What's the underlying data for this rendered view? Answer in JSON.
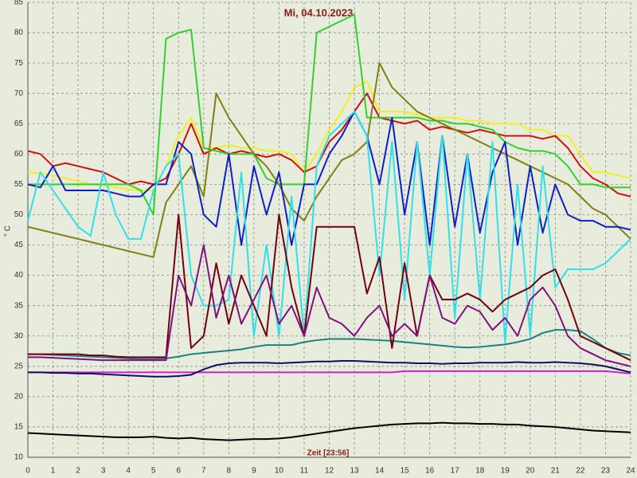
{
  "chart_data": {
    "type": "line",
    "title": "Mi, 04.10.2023",
    "x_label": "Zeit [23:56]",
    "y_label": "° C",
    "x": [
      0,
      0.5,
      1,
      1.5,
      2,
      2.5,
      3,
      3.5,
      4,
      4.5,
      5,
      5.5,
      6,
      6.5,
      7,
      7.5,
      8,
      8.5,
      9,
      9.5,
      10,
      10.5,
      11,
      11.5,
      12,
      12.5,
      13,
      13.5,
      14,
      14.5,
      15,
      15.5,
      16,
      16.5,
      17,
      17.5,
      18,
      18.5,
      19,
      19.5,
      20,
      20.5,
      21,
      21.5,
      22,
      22.5,
      23,
      23.5,
      24
    ],
    "xlim": [
      0,
      24
    ],
    "xticks": [
      0,
      1,
      2,
      3,
      4,
      5,
      6,
      7,
      8,
      9,
      10,
      11,
      12,
      13,
      14,
      15,
      16,
      17,
      18,
      19,
      20,
      21,
      22,
      23,
      24
    ],
    "ylim": [
      10,
      85
    ],
    "yticks": [
      10,
      15,
      20,
      25,
      30,
      35,
      40,
      45,
      50,
      55,
      60,
      65,
      70,
      75,
      80,
      85
    ],
    "grid": true,
    "series": [
      {
        "color": "#000000",
        "values": [
          14,
          13.9,
          13.8,
          13.7,
          13.6,
          13.5,
          13.4,
          13.3,
          13.3,
          13.3,
          13.4,
          13.2,
          13.1,
          13.2,
          13,
          12.9,
          12.8,
          12.9,
          13,
          13,
          13.1,
          13.3,
          13.6,
          13.9,
          14.2,
          14.5,
          14.8,
          15,
          15.2,
          15.4,
          15.5,
          15.6,
          15.6,
          15.7,
          15.6,
          15.6,
          15.5,
          15.5,
          15.4,
          15.4,
          15.2,
          15.1,
          15,
          14.8,
          14.6,
          14.4,
          14.3,
          14.2,
          14.1
        ]
      },
      {
        "color": "#d020d0",
        "values": [
          24,
          24,
          24,
          24,
          24,
          24,
          24,
          24,
          24,
          24,
          24,
          24,
          24,
          24,
          24,
          24,
          24,
          24,
          24,
          24,
          24,
          24,
          24,
          24,
          24,
          24,
          24,
          24,
          24,
          24,
          24.2,
          24.2,
          24.2,
          24.2,
          24.2,
          24.2,
          24.2,
          24.2,
          24.2,
          24.2,
          24.2,
          24.2,
          24.2,
          24.2,
          24.2,
          24.2,
          24.2,
          24,
          23.8
        ]
      },
      {
        "color": "#101060",
        "values": [
          24,
          24,
          23.9,
          23.9,
          23.8,
          23.8,
          23.7,
          23.6,
          23.5,
          23.4,
          23.3,
          23.3,
          23.4,
          23.6,
          24.5,
          25.2,
          25.5,
          25.6,
          25.6,
          25.6,
          25.5,
          25.6,
          25.7,
          25.8,
          25.8,
          25.9,
          25.9,
          25.8,
          25.7,
          25.6,
          25.6,
          25.5,
          25.5,
          25.4,
          25.5,
          25.5,
          25.6,
          25.6,
          25.6,
          25.7,
          25.6,
          25.6,
          25.7,
          25.6,
          25.5,
          25.3,
          25,
          24.5,
          24
        ]
      },
      {
        "color": "#1a8080",
        "values": [
          27,
          27,
          26.9,
          26.8,
          26.7,
          26.6,
          26.5,
          26.4,
          26.3,
          26.2,
          26.2,
          26.3,
          26.6,
          27,
          27.2,
          27.4,
          27.6,
          27.8,
          28.2,
          28.5,
          28.5,
          28.5,
          29,
          29.3,
          29.5,
          29.5,
          29.5,
          29.4,
          29.3,
          29.2,
          29,
          28.8,
          28.6,
          28.4,
          28.2,
          28.1,
          28.2,
          28.4,
          28.6,
          29,
          29.5,
          30.5,
          31,
          31,
          30.8,
          29.5,
          28,
          27.2,
          26.8
        ]
      },
      {
        "color": "#f0f020",
        "values": [
          57,
          56.8,
          56.5,
          56,
          55.5,
          55,
          54.8,
          54.5,
          54.2,
          54,
          54,
          58,
          63,
          66,
          61,
          61,
          61.5,
          61,
          61,
          60.5,
          60.5,
          60,
          57,
          60,
          64,
          67,
          71,
          72,
          67,
          67,
          67,
          66.5,
          66,
          66,
          66,
          65.5,
          65.5,
          65,
          65,
          65,
          64,
          64,
          63,
          63,
          60,
          57,
          57,
          56.5,
          56
        ]
      },
      {
        "color": "#d01010",
        "values": [
          60.5,
          60,
          58,
          58.5,
          58,
          57.5,
          57,
          56,
          55,
          55.5,
          55,
          56,
          60,
          65,
          60,
          61,
          60,
          60.5,
          60,
          59.5,
          60,
          59,
          57,
          58,
          62,
          64,
          67,
          70,
          66,
          65.5,
          65,
          65.5,
          64,
          64.5,
          64,
          63.5,
          64,
          63.5,
          63,
          63,
          63,
          62.5,
          63,
          61,
          58,
          56,
          55,
          53.5,
          53
        ]
      },
      {
        "color": "#30d030",
        "values": [
          55,
          55,
          55,
          55,
          55,
          55,
          55,
          55,
          55,
          54,
          50,
          79,
          80,
          80.5,
          61,
          60.5,
          60,
          60,
          60,
          56,
          55,
          55,
          55,
          80,
          81,
          82,
          83,
          66,
          66,
          66,
          66,
          66,
          65.5,
          65.5,
          65,
          65,
          64.5,
          64,
          62,
          61,
          60.5,
          60.5,
          60,
          58,
          55,
          55,
          54.5,
          54.5,
          54.5
        ]
      },
      {
        "color": "#808010",
        "values": [
          48,
          47.5,
          47,
          46.5,
          46,
          45.5,
          45,
          44.5,
          44,
          43.5,
          43,
          52,
          55,
          58,
          53,
          70,
          66,
          63,
          60,
          58,
          55,
          51,
          49,
          53,
          56,
          59,
          60,
          62,
          75,
          71,
          69,
          67,
          66,
          65,
          64,
          63,
          62,
          61,
          60,
          59,
          58,
          57,
          56,
          55,
          53,
          51,
          50,
          48,
          46
        ]
      },
      {
        "color": "#1020c0",
        "values": [
          55,
          54.5,
          58,
          54,
          54,
          54,
          54,
          53.5,
          53,
          53,
          55,
          55,
          62,
          60,
          50,
          48,
          60,
          45,
          58,
          50,
          57,
          45,
          55,
          55,
          60,
          63,
          67,
          63,
          55,
          66,
          50,
          62,
          45,
          63,
          48,
          60,
          47,
          57,
          62,
          45,
          58,
          47,
          55,
          50,
          49,
          49,
          48,
          48,
          47.5
        ]
      },
      {
        "color": "#30e0e8",
        "values": [
          49,
          57,
          54,
          51,
          48,
          46.5,
          57,
          50,
          46,
          46,
          54,
          58,
          60,
          40,
          35,
          35,
          36,
          57,
          30,
          45,
          30,
          53,
          30,
          58,
          63,
          65,
          67,
          63,
          40,
          62,
          36,
          62,
          40,
          63,
          33,
          60,
          36,
          62,
          29,
          55,
          30,
          58,
          38,
          41,
          41,
          41,
          42,
          44,
          46
        ]
      },
      {
        "color": "#700010",
        "values": [
          27,
          27,
          27,
          27,
          27,
          26.8,
          26.8,
          26.6,
          26.5,
          26.5,
          26.5,
          26.5,
          50,
          28,
          30,
          42,
          32,
          40,
          35,
          30,
          50,
          38,
          30,
          48,
          48,
          48,
          48,
          37,
          43,
          28,
          42,
          30,
          40,
          36,
          36,
          37,
          36,
          34,
          36,
          37,
          38,
          40,
          41,
          36,
          30,
          29,
          28,
          27,
          26
        ]
      },
      {
        "color": "#801080",
        "values": [
          26.5,
          26.5,
          26.4,
          26.3,
          26.2,
          26.1,
          26,
          26,
          26,
          26,
          26,
          26,
          40,
          35,
          45,
          33,
          40,
          32,
          36,
          40,
          32,
          35,
          30,
          38,
          33,
          32,
          30,
          33,
          35,
          30,
          32,
          30,
          40,
          33,
          32,
          35,
          34,
          31,
          33,
          30,
          36,
          38,
          35,
          30,
          28,
          27,
          26,
          25.5,
          25
        ]
      }
    ]
  }
}
